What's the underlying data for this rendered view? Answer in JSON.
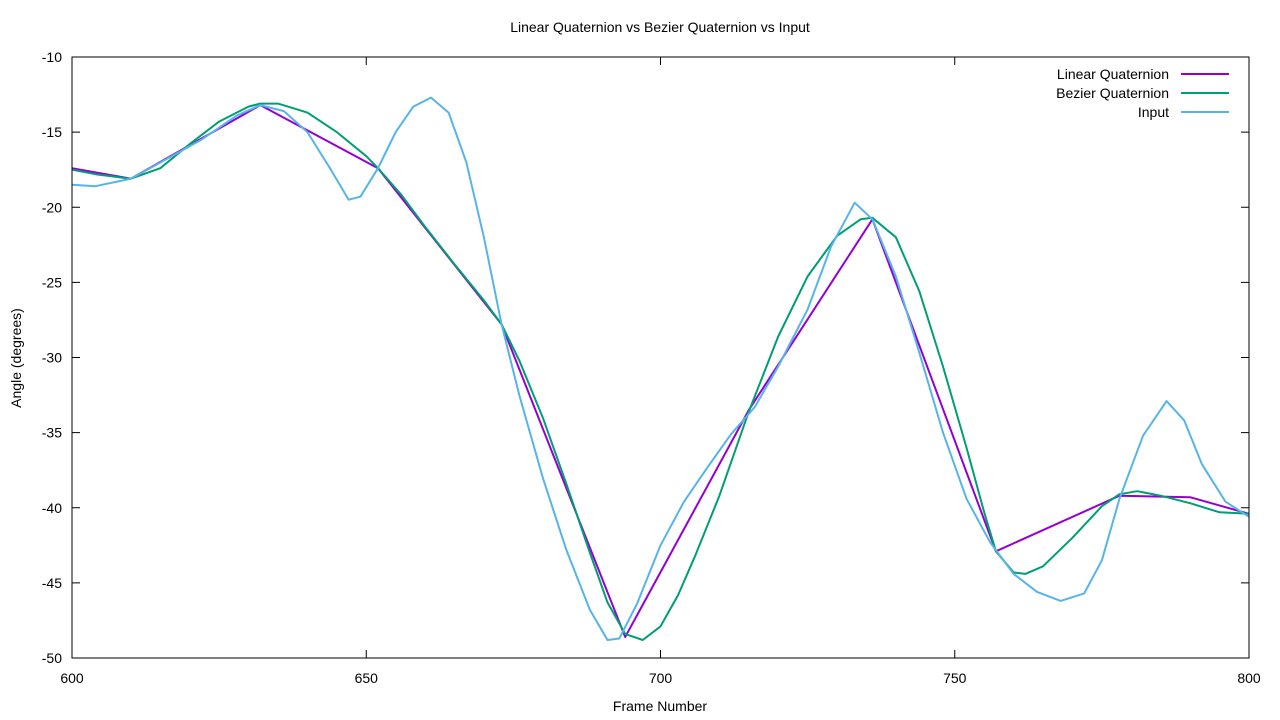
{
  "chart_data": {
    "type": "line",
    "title": "Linear Quaternion vs Bezier Quaternion vs Input",
    "xlabel": "Frame Number",
    "ylabel": "Angle (degrees)",
    "xlim": [
      600,
      800
    ],
    "ylim": [
      -50,
      -10
    ],
    "xticks": [
      600,
      650,
      700,
      750,
      800
    ],
    "yticks": [
      -50,
      -45,
      -40,
      -35,
      -30,
      -25,
      -20,
      -15,
      -10
    ],
    "grid": false,
    "legend_position": "top-right",
    "series": [
      {
        "name": "Linear Quaternion",
        "color": "#9400d3",
        "points": [
          [
            600,
            -17.4
          ],
          [
            610,
            -18.1
          ],
          [
            632,
            -13.2
          ],
          [
            652,
            -17.4
          ],
          [
            673,
            -27.8
          ],
          [
            694,
            -48.6
          ],
          [
            715,
            -33.5
          ],
          [
            736,
            -20.8
          ],
          [
            757,
            -42.9
          ],
          [
            778,
            -39.2
          ],
          [
            790,
            -39.3
          ],
          [
            800,
            -40.4
          ]
        ]
      },
      {
        "name": "Bezier Quaternion",
        "color": "#009e73",
        "points": [
          [
            600,
            -17.5
          ],
          [
            604,
            -17.8
          ],
          [
            610,
            -18.1
          ],
          [
            615,
            -17.4
          ],
          [
            620,
            -15.8
          ],
          [
            625,
            -14.3
          ],
          [
            630,
            -13.3
          ],
          [
            632,
            -13.1
          ],
          [
            635,
            -13.1
          ],
          [
            640,
            -13.7
          ],
          [
            645,
            -15.0
          ],
          [
            650,
            -16.6
          ],
          [
            652,
            -17.4
          ],
          [
            656,
            -19.2
          ],
          [
            660,
            -21.3
          ],
          [
            665,
            -23.8
          ],
          [
            670,
            -26.2
          ],
          [
            673,
            -27.8
          ],
          [
            676,
            -30.2
          ],
          [
            680,
            -34.0
          ],
          [
            684,
            -38.4
          ],
          [
            688,
            -43.0
          ],
          [
            691,
            -46.3
          ],
          [
            694,
            -48.4
          ],
          [
            697,
            -48.8
          ],
          [
            700,
            -47.9
          ],
          [
            703,
            -45.8
          ],
          [
            706,
            -43.1
          ],
          [
            710,
            -39.2
          ],
          [
            715,
            -33.6
          ],
          [
            720,
            -28.6
          ],
          [
            725,
            -24.6
          ],
          [
            730,
            -21.9
          ],
          [
            734,
            -20.8
          ],
          [
            736,
            -20.7
          ],
          [
            740,
            -22.0
          ],
          [
            744,
            -25.6
          ],
          [
            748,
            -30.6
          ],
          [
            752,
            -36.0
          ],
          [
            755,
            -40.3
          ],
          [
            757,
            -42.9
          ],
          [
            760,
            -44.3
          ],
          [
            762,
            -44.4
          ],
          [
            765,
            -43.9
          ],
          [
            770,
            -42.0
          ],
          [
            775,
            -39.9
          ],
          [
            778,
            -39.1
          ],
          [
            781,
            -38.9
          ],
          [
            785,
            -39.2
          ],
          [
            790,
            -39.7
          ],
          [
            795,
            -40.3
          ],
          [
            800,
            -40.4
          ]
        ]
      },
      {
        "name": "Input",
        "color": "#56b4e9",
        "points": [
          [
            600,
            -18.5
          ],
          [
            604,
            -18.6
          ],
          [
            610,
            -18.1
          ],
          [
            616,
            -16.8
          ],
          [
            622,
            -15.5
          ],
          [
            628,
            -13.9
          ],
          [
            632,
            -13.2
          ],
          [
            636,
            -13.6
          ],
          [
            640,
            -15.0
          ],
          [
            644,
            -17.5
          ],
          [
            647,
            -19.5
          ],
          [
            649,
            -19.3
          ],
          [
            652,
            -17.4
          ],
          [
            655,
            -15.0
          ],
          [
            658,
            -13.3
          ],
          [
            661,
            -12.7
          ],
          [
            664,
            -13.7
          ],
          [
            667,
            -17.0
          ],
          [
            670,
            -22.0
          ],
          [
            673,
            -27.8
          ],
          [
            676,
            -32.5
          ],
          [
            680,
            -38.0
          ],
          [
            684,
            -42.8
          ],
          [
            688,
            -46.8
          ],
          [
            691,
            -48.8
          ],
          [
            693,
            -48.7
          ],
          [
            696,
            -46.4
          ],
          [
            700,
            -42.5
          ],
          [
            704,
            -39.6
          ],
          [
            708,
            -37.3
          ],
          [
            712,
            -35.1
          ],
          [
            716,
            -33.3
          ],
          [
            720,
            -30.6
          ],
          [
            725,
            -26.8
          ],
          [
            729,
            -22.6
          ],
          [
            733,
            -19.7
          ],
          [
            736,
            -20.8
          ],
          [
            740,
            -24.6
          ],
          [
            744,
            -29.7
          ],
          [
            748,
            -35.0
          ],
          [
            752,
            -39.4
          ],
          [
            756,
            -42.3
          ],
          [
            760,
            -44.4
          ],
          [
            764,
            -45.6
          ],
          [
            768,
            -46.2
          ],
          [
            772,
            -45.7
          ],
          [
            775,
            -43.5
          ],
          [
            778,
            -39.4
          ],
          [
            782,
            -35.2
          ],
          [
            786,
            -32.9
          ],
          [
            789,
            -34.2
          ],
          [
            792,
            -37.1
          ],
          [
            796,
            -39.6
          ],
          [
            800,
            -40.6
          ]
        ]
      }
    ]
  }
}
